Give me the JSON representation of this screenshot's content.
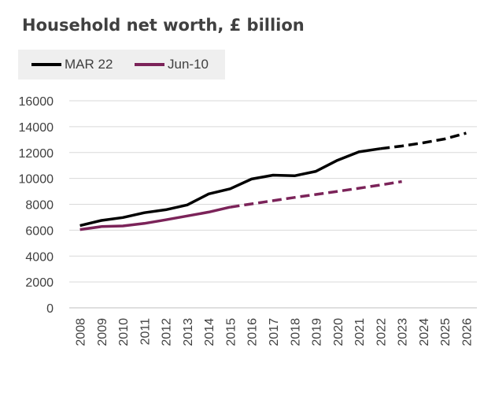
{
  "chart_data": {
    "type": "line",
    "title": "Household net worth, £ billion",
    "xlabel": "",
    "ylabel": "",
    "x": [
      "2008",
      "2009",
      "2010",
      "2011",
      "2012",
      "2013",
      "2014",
      "2015",
      "2016",
      "2017",
      "2018",
      "2019",
      "2020",
      "2021",
      "2022",
      "2023",
      "2024",
      "2025",
      "2026"
    ],
    "ylim": [
      0,
      16000
    ],
    "yticks": [
      0,
      2000,
      4000,
      6000,
      8000,
      10000,
      12000,
      14000,
      16000
    ],
    "grid": "horizontal",
    "legend_position": "top-left",
    "series": [
      {
        "name": "MAR 22",
        "color": "#000000",
        "values": [
          6350,
          6750,
          6980,
          7350,
          7580,
          7950,
          8800,
          9200,
          9950,
          10250,
          10200,
          10550,
          11400,
          12050,
          12300,
          12500,
          12750,
          13050,
          13500
        ],
        "dashed_from": "2022"
      },
      {
        "name": "Jun-10",
        "color": "#7b2359",
        "values": [
          6050,
          6280,
          6330,
          6520,
          6800,
          7100,
          7400,
          7780,
          8030,
          8280,
          8530,
          8760,
          9000,
          9240,
          9490,
          9760,
          null,
          null,
          null
        ],
        "dashed_from": "2015"
      }
    ]
  }
}
